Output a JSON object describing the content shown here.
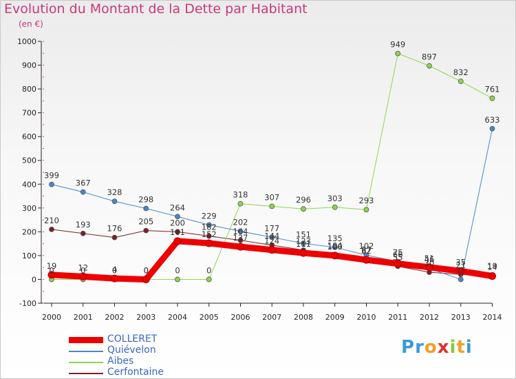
{
  "title": "Evolution du Montant de la Dette par Habitant",
  "subtitle": "(en €)",
  "logo": {
    "text": "Proxiti",
    "letters": [
      "P",
      "r",
      "o",
      "x",
      "i",
      "t",
      "i"
    ],
    "colors": [
      "#3a9ad9",
      "#3a9ad9",
      "#f0a028",
      "#e0302a",
      "#8cc63f",
      "#f0a028",
      "#3a9ad9"
    ]
  },
  "chart_data": {
    "type": "line",
    "title": "Evolution du Montant de la Dette par Habitant",
    "ylabel": "(en €)",
    "xlabel": "",
    "x": [
      "2000",
      "2001",
      "2002",
      "2003",
      "2004",
      "2005",
      "2006",
      "2007",
      "2008",
      "2009",
      "2010",
      "2011",
      "2012",
      "2013",
      "2014"
    ],
    "ylim": [
      -100,
      1000
    ],
    "yticks": [
      -100,
      0,
      100,
      200,
      300,
      400,
      500,
      600,
      700,
      800,
      900,
      1000
    ],
    "grid": false,
    "legend": "bottom-left",
    "series": [
      {
        "name": "COLLERET",
        "color": "#ee0000",
        "width": 9,
        "values": [
          19,
          12,
          4,
          0,
          161,
          152,
          137,
          124,
          111,
          100,
          82,
          66,
          51,
          35,
          14
        ],
        "labels": [
          "19",
          "12",
          "4",
          "0",
          "161",
          "152",
          "137",
          "124",
          "111",
          "100",
          "82",
          "66",
          "51",
          "35",
          "14"
        ]
      },
      {
        "name": "Quiévelon",
        "color": "#4a86c5",
        "width": 1,
        "values": [
          399,
          367,
          328,
          298,
          264,
          229,
          202,
          177,
          151,
          135,
          102,
          75,
          46,
          0,
          633
        ],
        "labels": [
          "399",
          "367",
          "328",
          "298",
          "264",
          "229",
          "202",
          "177",
          "151",
          "135",
          "102",
          "75",
          "46",
          "0",
          "633"
        ]
      },
      {
        "name": "Aibes",
        "color": "#8fd44f",
        "width": 1,
        "values": [
          0,
          0,
          0,
          0,
          0,
          0,
          318,
          307,
          296,
          303,
          293,
          949,
          897,
          832,
          761
        ],
        "labels": [
          "0",
          "0",
          "0",
          "0",
          "0",
          "0",
          "318",
          "307",
          "296",
          "303",
          "293",
          "949",
          "897",
          "832",
          "761"
        ]
      },
      {
        "name": "Cerfontaine",
        "color": "#7a1f28",
        "width": 1,
        "values": [
          210,
          193,
          176,
          205,
          200,
          182,
          164,
          144,
          123,
          104,
          87,
          55,
          30,
          21,
          19
        ],
        "labels": [
          "210",
          "193",
          "176",
          "205",
          "200",
          "182",
          "164",
          "144",
          "123",
          "104",
          "87",
          "55",
          "30",
          "21",
          "19"
        ]
      }
    ]
  }
}
